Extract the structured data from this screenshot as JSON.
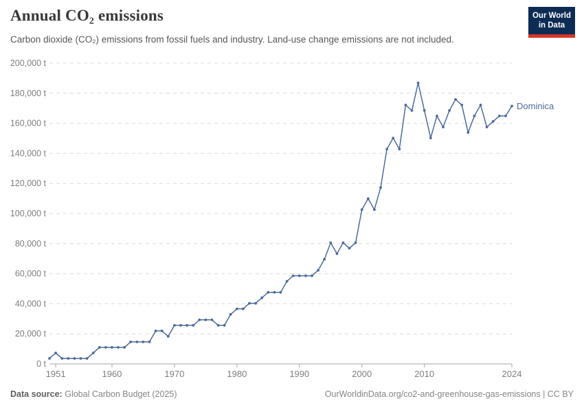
{
  "header": {
    "title": "Annual CO₂ emissions",
    "subtitle": "Carbon dioxide (CO₂) emissions from fossil fuels and industry. Land-use change emissions are not included.",
    "logo_line1": "Our World",
    "logo_line2": "in Data"
  },
  "footer": {
    "source_label": "Data source:",
    "source_text": "Global Carbon Budget (2025)",
    "link_text": "OurWorldinData.org/co2-and-greenhouse-gas-emissions | CC BY"
  },
  "colors": {
    "line": "#4C6A9C",
    "entity_label": "#4C6A9C",
    "grid": "#dcdcdc",
    "axis": "#a5a5a5",
    "tick_label": "#7e7e7e",
    "title": "#383838",
    "subtitle": "#575757",
    "footer_text": "#858585",
    "logo_bg": "#0d2c54",
    "logo_red": "#d8352a"
  },
  "chart_data": {
    "type": "line",
    "title": "Annual CO₂ emissions",
    "entity": "Dominica",
    "unit": "t",
    "grid": "horizontal-dashed",
    "legend_position": "end-of-line",
    "xlim": [
      1950,
      2024
    ],
    "ylim": [
      0,
      200000
    ],
    "x_ticks": [
      1951,
      1960,
      1970,
      1980,
      1990,
      2000,
      2010,
      2024
    ],
    "y_ticks": [
      0,
      20000,
      40000,
      60000,
      80000,
      100000,
      120000,
      140000,
      160000,
      180000,
      200000
    ],
    "years": [
      1950,
      1951,
      1952,
      1953,
      1954,
      1955,
      1956,
      1957,
      1958,
      1959,
      1960,
      1961,
      1962,
      1963,
      1964,
      1965,
      1966,
      1967,
      1968,
      1969,
      1970,
      1971,
      1972,
      1973,
      1974,
      1975,
      1976,
      1977,
      1978,
      1979,
      1980,
      1981,
      1982,
      1983,
      1984,
      1985,
      1986,
      1987,
      1988,
      1989,
      1990,
      1991,
      1992,
      1993,
      1994,
      1995,
      1996,
      1997,
      1998,
      1999,
      2000,
      2001,
      2002,
      2003,
      2004,
      2005,
      2006,
      2007,
      2008,
      2009,
      2010,
      2011,
      2012,
      2013,
      2014,
      2015,
      2016,
      2017,
      2018,
      2019,
      2020,
      2021,
      2022,
      2023,
      2024
    ],
    "values": [
      3664,
      7328,
      3664,
      3664,
      3664,
      3664,
      3664,
      7328,
      10992,
      10992,
      10992,
      10992,
      10992,
      14656,
      14656,
      14656,
      14656,
      21984,
      21984,
      18320,
      25648,
      25648,
      25648,
      25648,
      29312,
      29312,
      29312,
      25648,
      25648,
      32976,
      36640,
      36640,
      40304,
      40304,
      43968,
      47632,
      47632,
      47632,
      54960,
      58624,
      58624,
      58624,
      58624,
      62288,
      69616,
      80608,
      73280,
      80608,
      76944,
      80608,
      102592,
      109920,
      102592,
      117248,
      142896,
      150224,
      142896,
      172208,
      168544,
      186864,
      168544,
      150224,
      164880,
      157552,
      168544,
      175872,
      172208,
      153888,
      164880,
      172208,
      157552,
      161216,
      164880,
      164880,
      171500
    ]
  }
}
